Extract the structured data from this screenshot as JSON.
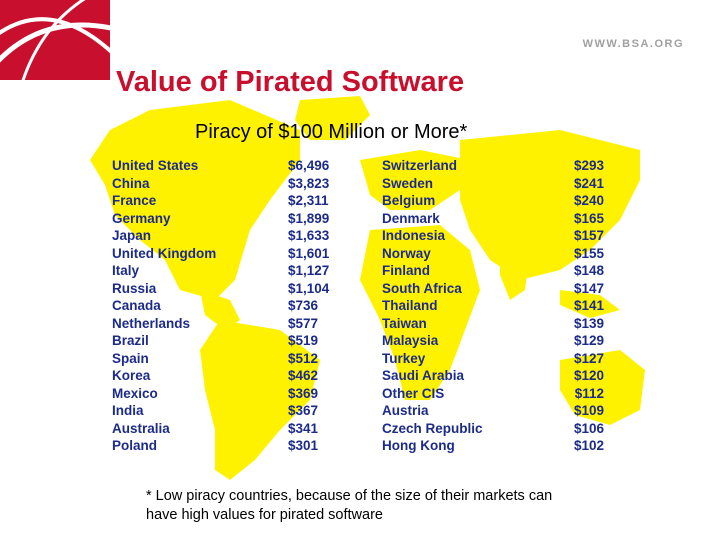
{
  "header": {
    "site_url": "WWW.BSA.ORG",
    "brand_color": "#c8102e"
  },
  "slide": {
    "title": "Value of Pirated Software",
    "subtitle": "Piracy of $100 Million or More*",
    "footnote_line1": "* Low piracy countries, because of the size of their markets can",
    "footnote_line2": "have high values for pirated software",
    "map_color": "#fff200",
    "text_color": "#1c2b8a"
  },
  "table": {
    "left": [
      {
        "country": "United States",
        "value": "$6,496"
      },
      {
        "country": "China",
        "value": "$3,823"
      },
      {
        "country": "France",
        "value": "$2,311"
      },
      {
        "country": "Germany",
        "value": "$1,899"
      },
      {
        "country": "Japan",
        "value": "$1,633"
      },
      {
        "country": "United Kingdom",
        "value": "$1,601"
      },
      {
        "country": "Italy",
        "value": "$1,127"
      },
      {
        "country": "Russia",
        "value": "$1,104"
      },
      {
        "country": "Canada",
        "value": "$736"
      },
      {
        "country": "Netherlands",
        "value": "$577"
      },
      {
        "country": "Brazil",
        "value": "$519"
      },
      {
        "country": "Spain",
        "value": "$512"
      },
      {
        "country": "Korea",
        "value": "$462"
      },
      {
        "country": "Mexico",
        "value": "$369"
      },
      {
        "country": "India",
        "value": "$367"
      },
      {
        "country": "Australia",
        "value": "$341"
      },
      {
        "country": "Poland",
        "value": "$301"
      }
    ],
    "right": [
      {
        "country": "Switzerland",
        "value": "$293"
      },
      {
        "country": "Sweden",
        "value": "$241"
      },
      {
        "country": "Belgium",
        "value": "$240"
      },
      {
        "country": "Denmark",
        "value": "$165"
      },
      {
        "country": "Indonesia",
        "value": "$157"
      },
      {
        "country": "Norway",
        "value": "$155"
      },
      {
        "country": "Finland",
        "value": "$148"
      },
      {
        "country": "South Africa",
        "value": "$147"
      },
      {
        "country": "Thailand",
        "value": "$141"
      },
      {
        "country": "Taiwan",
        "value": "$139"
      },
      {
        "country": "Malaysia",
        "value": "$129"
      },
      {
        "country": "Turkey",
        "value": "$127"
      },
      {
        "country": "Saudi Arabia",
        "value": "$120"
      },
      {
        "country": "Other CIS",
        "value": "$112"
      },
      {
        "country": "Austria",
        "value": "$109"
      },
      {
        "country": "Czech Republic",
        "value": "$106"
      },
      {
        "country": "Hong Kong",
        "value": "$102"
      }
    ]
  }
}
